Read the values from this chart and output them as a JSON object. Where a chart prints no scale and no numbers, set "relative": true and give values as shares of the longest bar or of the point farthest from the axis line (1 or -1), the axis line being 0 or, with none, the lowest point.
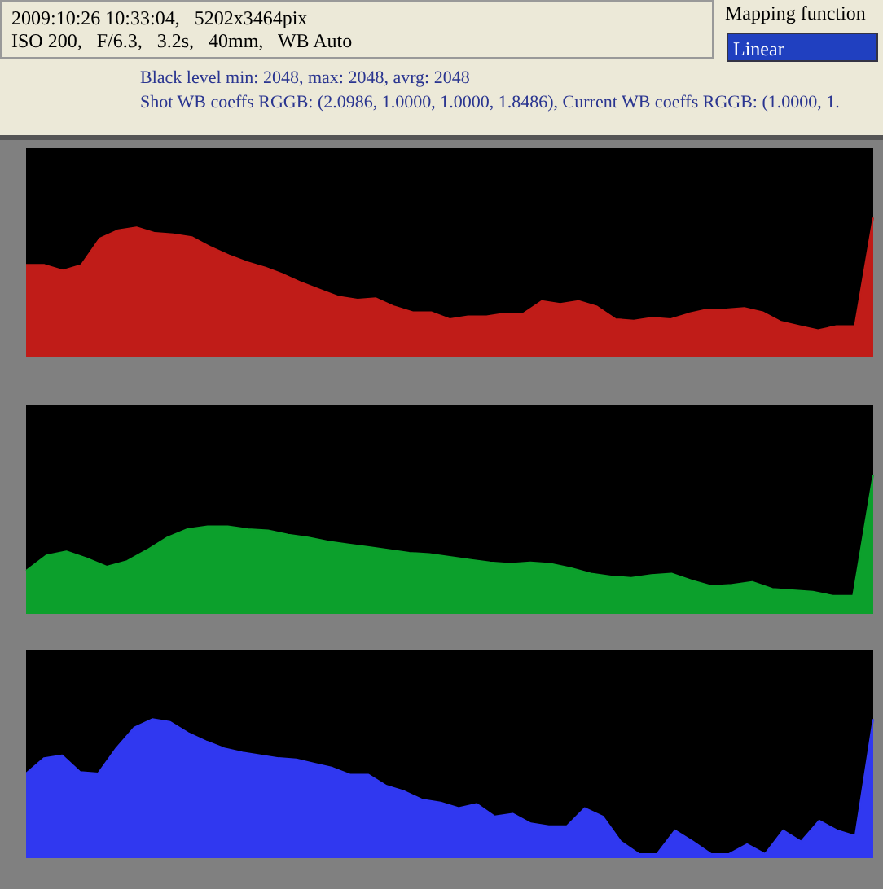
{
  "chart_data": [
    {
      "type": "area",
      "relative": true,
      "annotations": [
        "2009:10:26 10:33:04,   5202x3464pix",
        "ISO 200,   F/6.3,   3.2s,   40mm,   WB Auto",
        "Black level min: 2048, max: 2048, avrg: 2048",
        "Shot WB coeffs RGGB: (2.0986, 1.0000, 1.0000, 1.8486),  Current WB coeffs RGGB: (1.0000, 1.",
        "Mapping function",
        "Linear"
      ],
      "categories": [
        null,
        null,
        null,
        null,
        null,
        null,
        null,
        null,
        null,
        null,
        null,
        null,
        null,
        null,
        null,
        null,
        null,
        null,
        null,
        null,
        null,
        null,
        null,
        null,
        null,
        null,
        null,
        null,
        null,
        null,
        null,
        null,
        null,
        null,
        null,
        null,
        null,
        null,
        null,
        null,
        null,
        null,
        null,
        null,
        null,
        null,
        null
      ],
      "series": [
        {
          "color": "#c01c18",
          "values": [
            0.66,
            0.66,
            0.62,
            0.66,
            0.85,
            0.91,
            0.93,
            0.89,
            0.88,
            0.86,
            0.79,
            0.73,
            0.68,
            0.64,
            0.59,
            0.53,
            0.48,
            0.43,
            0.41,
            0.42,
            0.36,
            0.32,
            0.32,
            0.27,
            0.29,
            0.29,
            0.31,
            0.31,
            0.4,
            0.38,
            0.4,
            0.36,
            0.27,
            0.26,
            0.28,
            0.27,
            0.31,
            0.34,
            0.34,
            0.35,
            0.32,
            0.25,
            0.22,
            0.19,
            0.22,
            0.22,
            1
          ]
        }
      ]
    },
    {
      "type": "area",
      "relative": true,
      "categories": [
        null,
        null,
        null,
        null,
        null,
        null,
        null,
        null,
        null,
        null,
        null,
        null,
        null,
        null,
        null,
        null,
        null,
        null,
        null,
        null,
        null,
        null,
        null,
        null,
        null,
        null,
        null,
        null,
        null,
        null,
        null,
        null,
        null,
        null,
        null,
        null,
        null,
        null,
        null,
        null,
        null,
        null,
        null
      ],
      "series": [
        {
          "color": "#0ca02c",
          "values": [
            0.31,
            0.42,
            0.45,
            0.4,
            0.34,
            0.38,
            0.46,
            0.55,
            0.61,
            0.63,
            0.63,
            0.61,
            0.6,
            0.57,
            0.55,
            0.52,
            0.5,
            0.48,
            0.46,
            0.44,
            0.43,
            0.41,
            0.39,
            0.37,
            0.36,
            0.37,
            0.36,
            0.33,
            0.29,
            0.27,
            0.26,
            0.28,
            0.29,
            0.24,
            0.2,
            0.21,
            0.23,
            0.18,
            0.17,
            0.16,
            0.13,
            0.13,
            1
          ]
        }
      ]
    },
    {
      "type": "area",
      "relative": true,
      "categories": [
        null,
        null,
        null,
        null,
        null,
        null,
        null,
        null,
        null,
        null,
        null,
        null,
        null,
        null,
        null,
        null,
        null,
        null,
        null,
        null,
        null,
        null,
        null,
        null,
        null,
        null,
        null,
        null,
        null,
        null,
        null,
        null,
        null,
        null,
        null,
        null,
        null,
        null,
        null,
        null,
        null,
        null,
        null,
        null,
        null,
        null,
        null,
        null
      ],
      "series": [
        {
          "color": "#3038f0",
          "values": [
            0.61,
            0.72,
            0.74,
            0.62,
            0.61,
            0.79,
            0.94,
            1.0,
            0.98,
            0.9,
            0.84,
            0.79,
            0.76,
            0.74,
            0.72,
            0.71,
            0.68,
            0.65,
            0.6,
            0.6,
            0.52,
            0.48,
            0.42,
            0.4,
            0.36,
            0.39,
            0.3,
            0.32,
            0.25,
            0.23,
            0.23,
            0.36,
            0.3,
            0.12,
            0.03,
            0.03,
            0.2,
            0.12,
            0.03,
            0.03,
            0.1,
            0.03,
            0.2,
            0.12,
            0.27,
            0.2,
            0.16,
            1
          ]
        }
      ]
    }
  ]
}
